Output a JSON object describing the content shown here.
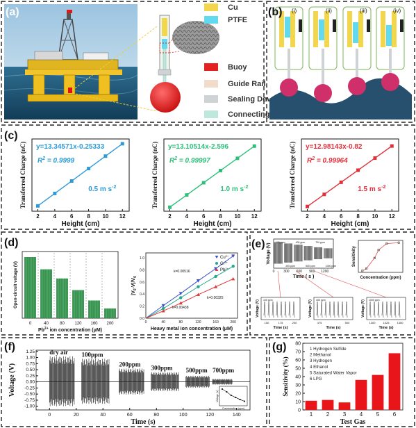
{
  "panel_labels": {
    "a": "(a)",
    "b": "(b)",
    "c": "(c)",
    "d": "(d)",
    "e": "(e)",
    "f": "(f)",
    "g": "(g)"
  },
  "panel_a": {
    "legend": [
      {
        "label": "Cu",
        "color": "#f2d64b"
      },
      {
        "label": "PTFE",
        "color": "#63d9f0"
      },
      {
        "label": "Buoy",
        "color": "#e52020"
      },
      {
        "label": "Guide Rail",
        "color": "#f1dccb"
      },
      {
        "label": "Sealing Device",
        "color": "#cfd3d6"
      },
      {
        "label": "Connecting Rod",
        "color": "#bfe8dd"
      }
    ]
  },
  "panel_b": {
    "stage_labels": [
      "(i)",
      "(ii)",
      "(iii)",
      "(iv)"
    ]
  },
  "chart_data": [
    {
      "id": "c1",
      "type": "line",
      "x": [
        2,
        4,
        6,
        8,
        10,
        12
      ],
      "series": [
        {
          "values": [
            26.4,
            53.1,
            79.8,
            106.5,
            133.2,
            159.8
          ],
          "color": "#2e9bd6"
        }
      ],
      "xlabel": "Height (cm)",
      "ylabel": "Transferred Charge (nC)",
      "xticks": [
        "2",
        "4",
        "6",
        "8",
        "10",
        "12"
      ],
      "equation": "y=13.34571x-0.25333",
      "r2_label": "R",
      "r2_value": " = 0.9999",
      "annotation": "0.5 m s",
      "annotation_exp": "-2",
      "xlim": [
        1.3,
        12.8
      ],
      "ylim": [
        15,
        170
      ],
      "grid": false
    },
    {
      "id": "c2",
      "type": "line",
      "x": [
        2,
        4,
        6,
        8,
        10,
        12
      ],
      "series": [
        {
          "values": [
            23.6,
            49.8,
            76.1,
            102.3,
            128.5,
            154.7
          ],
          "color": "#2dbf7a"
        }
      ],
      "xlabel": "Height (cm)",
      "ylabel": "Transferred Charge (nC)",
      "xticks": [
        "2",
        "4",
        "6",
        "8",
        "10",
        "12"
      ],
      "equation": "y=13.10514x-2.596",
      "r2_label": "R",
      "r2_value": " = 0.99997",
      "annotation": "1.0 m s",
      "annotation_exp": "-2",
      "xlim": [
        1.3,
        12.8
      ],
      "ylim": [
        15,
        170
      ],
      "grid": false
    },
    {
      "id": "c3",
      "type": "line",
      "x": [
        2,
        4,
        6,
        8,
        10,
        12
      ],
      "series": [
        {
          "values": [
            25.1,
            51.1,
            77.1,
            103.0,
            129.0,
            154.9
          ],
          "color": "#e0303a"
        }
      ],
      "xlabel": "Height (cm)",
      "ylabel": "Transferred Charge (nC)",
      "xticks": [
        "2",
        "4",
        "6",
        "8",
        "10",
        "12"
      ],
      "equation": "y=12.98143x-0.82",
      "r2_label": "R",
      "r2_value": " = 0.99964",
      "annotation": "1.5 m s",
      "annotation_exp": "-2",
      "xlim": [
        1.3,
        12.8
      ],
      "ylim": [
        15,
        170
      ],
      "grid": false
    },
    {
      "id": "d1",
      "type": "bar",
      "categories": [
        "0",
        "40",
        "80",
        "120",
        "160",
        "200"
      ],
      "values": [
        1.0,
        0.8,
        0.65,
        0.46,
        0.29,
        0.16
      ],
      "xlabel": "Pb",
      "xlabel_sup": "2+",
      "xlabel_tail": " ion concentration (μM)",
      "ylabel": "Open-circuit voltage (V)",
      "color": "#2e9a4a"
    },
    {
      "id": "d2",
      "type": "scatter",
      "x": [
        40,
        80,
        120,
        160,
        200
      ],
      "series": [
        {
          "name": "Cu",
          "name_sup": "2+",
          "values": [
            0.21,
            0.41,
            0.62,
            0.82,
            1.03
          ],
          "color": "#3a4fc6",
          "marker": "triangle-down",
          "slope": "k=0.00516"
        },
        {
          "name": "Cr",
          "name_sup": "3+",
          "values": [
            0.16,
            0.34,
            0.52,
            0.69,
            0.86
          ],
          "color": "#23a889",
          "marker": "circle",
          "slope": ""
        },
        {
          "name": "Pb",
          "name_sup": "2+",
          "values": [
            0.12,
            0.25,
            0.39,
            0.52,
            0.65
          ],
          "color": "#e03a3a",
          "marker": "triangle-up",
          "slope": "k=0.00325"
        }
      ],
      "extra_annotation": "k=0.00438",
      "xlabel": "Heavy metal ion concentration (μM)",
      "ylabel": "|V",
      "ylabel_sub0": "0",
      "ylabel_mid": "-V|/V",
      "ylabel_sub1": "0",
      "xticks": [
        "0",
        "40",
        "80",
        "120",
        "160",
        "200"
      ],
      "yticks": [
        "0.0",
        "0.2",
        "0.4",
        "0.6",
        "0.8",
        "1.0"
      ],
      "xlim": [
        0,
        210
      ],
      "ylim": [
        0,
        1.08
      ]
    },
    {
      "id": "e_main",
      "type": "line",
      "segments": [
        {
          "label": "100 ppm",
          "amplitude": 0.9
        },
        {
          "label": "200 ppm",
          "amplitude": 0.8
        },
        {
          "label": "400 ppm",
          "amplitude": 0.7
        },
        {
          "label": "500 ppm",
          "amplitude": 0.6
        },
        {
          "label": "700 ppm",
          "amplitude": 0.5
        },
        {
          "label": "1000 ppm",
          "amplitude": 0.42
        }
      ],
      "xlabel": "Time ( s )",
      "ylabel": "Voltage (V)",
      "xticks": [
        "0",
        "300",
        "600",
        "900",
        "1200"
      ],
      "xlim": [
        0,
        1400
      ]
    },
    {
      "id": "e_sens",
      "type": "scatter",
      "x": [
        100,
        200,
        400,
        500,
        700,
        1000
      ],
      "values": [
        0.05,
        0.12,
        0.45,
        0.7,
        0.9,
        0.93
      ],
      "xlabel": "Concentration (ppm)",
      "ylabel": "Sensitivity",
      "color": "#e05050",
      "xlim": [
        0,
        1100
      ],
      "ylim": [
        0,
        1
      ]
    },
    {
      "id": "e_zooms",
      "type": "line",
      "panels": [
        {
          "label": "100 ppm",
          "xticks": [
            "150",
            "175",
            "200"
          ],
          "xlabel": "Time (s)",
          "ylabel": "Voltage (V)"
        },
        {
          "label": "400 ppm",
          "xticks": [
            "475",
            "500"
          ],
          "xlabel": "Time (s)",
          "ylabel": "Voltage (V)"
        },
        {
          "label": "1000 ppm",
          "xticks": [
            "1300",
            "1325",
            "1350"
          ],
          "xlabel": "Time (s)",
          "ylabel": "Voltage (V)"
        }
      ]
    },
    {
      "id": "f",
      "type": "line",
      "segments": [
        {
          "label": "dry air",
          "t0": 0,
          "t1": 19,
          "amplitude": 1.05
        },
        {
          "label": "100ppm",
          "t0": 24,
          "t1": 45,
          "amplitude": 0.95
        },
        {
          "label": "200ppm",
          "t0": 52,
          "t1": 71,
          "amplitude": 0.55
        },
        {
          "label": "300ppm",
          "t0": 76,
          "t1": 97,
          "amplitude": 0.4
        },
        {
          "label": "500ppm",
          "t0": 102,
          "t1": 120,
          "amplitude": 0.25
        },
        {
          "label": "700ppm",
          "t0": 122,
          "t1": 137,
          "amplitude": 0.12
        }
      ],
      "xlabel": "Time (s)",
      "ylabel": "Voltage (V)",
      "xticks": [
        "0",
        "20",
        "40",
        "60",
        "80",
        "100",
        "120",
        "140"
      ],
      "yticks": [
        "-1.00",
        "-0.75",
        "-0.50",
        "-0.25",
        "0.00",
        "0.25",
        "0.50",
        "0.75",
        "1.00",
        "1.25"
      ],
      "xlim": [
        -10,
        150
      ],
      "ylim": [
        -1.15,
        1.3
      ],
      "inset": {
        "xlabel": "Concentration (ppm)",
        "ylabel": "Voltage (V)",
        "values": [
          1.0,
          0.8,
          0.55,
          0.4,
          0.25,
          0.12
        ]
      }
    },
    {
      "id": "g",
      "type": "bar",
      "categories": [
        "1",
        "2",
        "3",
        "4",
        "5",
        "6"
      ],
      "values": [
        11,
        12,
        9,
        36,
        42,
        68
      ],
      "legend": [
        "1 Hydrogen Sulfide",
        "2 Methanol",
        "3 Hydrogen",
        "4 Ethanol",
        "5 Saturated Water Vapor",
        "6 LPG"
      ],
      "xlabel": "Test Gas",
      "ylabel": "Sensitivity (%)",
      "yticks": [
        "0",
        "10",
        "20",
        "30",
        "40",
        "50",
        "60",
        "70",
        "80"
      ],
      "ylim": [
        0,
        80
      ],
      "color": "#e8161b"
    }
  ]
}
